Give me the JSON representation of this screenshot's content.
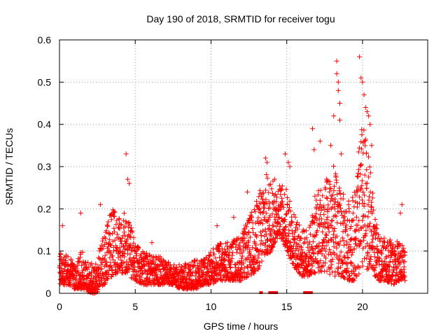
{
  "chart_data": {
    "type": "scatter",
    "title": "Day 190 of 2018, SRMTID for receiver togu",
    "xlabel": "GPS time / hours",
    "ylabel": "SRMTID / TECUs",
    "xlim": [
      0,
      24.3
    ],
    "ylim": [
      0,
      0.6
    ],
    "xticks": [
      0,
      5,
      10,
      15,
      20
    ],
    "xtick_labels": [
      "0",
      "5",
      "10",
      "15",
      "20"
    ],
    "yticks": [
      0,
      0.1,
      0.2,
      0.3,
      0.4,
      0.5,
      0.6
    ],
    "ytick_labels": [
      "0",
      "0.1",
      "0.2",
      "0.3",
      "0.4",
      "0.5",
      "0.6"
    ],
    "grid": true,
    "marker": "plus",
    "color": "#ff0000",
    "series": [
      {
        "name": "SRMTID",
        "envelope": [
          [
            0.0,
            0.02,
            0.1
          ],
          [
            0.5,
            0.02,
            0.09
          ],
          [
            1.0,
            0.01,
            0.08
          ],
          [
            1.5,
            0.01,
            0.1
          ],
          [
            2.0,
            0.0,
            0.07
          ],
          [
            2.5,
            0.0,
            0.08
          ],
          [
            3.0,
            0.02,
            0.16
          ],
          [
            3.5,
            0.04,
            0.2
          ],
          [
            4.0,
            0.05,
            0.18
          ],
          [
            4.5,
            0.04,
            0.2
          ],
          [
            5.0,
            0.03,
            0.12
          ],
          [
            5.5,
            0.02,
            0.1
          ],
          [
            6.0,
            0.02,
            0.09
          ],
          [
            6.5,
            0.02,
            0.09
          ],
          [
            7.0,
            0.02,
            0.08
          ],
          [
            7.5,
            0.02,
            0.07
          ],
          [
            8.0,
            0.01,
            0.07
          ],
          [
            8.5,
            0.01,
            0.07
          ],
          [
            9.0,
            0.01,
            0.08
          ],
          [
            9.5,
            0.02,
            0.08
          ],
          [
            10.0,
            0.02,
            0.1
          ],
          [
            10.5,
            0.03,
            0.12
          ],
          [
            11.0,
            0.03,
            0.12
          ],
          [
            11.5,
            0.03,
            0.13
          ],
          [
            12.0,
            0.03,
            0.14
          ],
          [
            12.5,
            0.04,
            0.18
          ],
          [
            13.0,
            0.05,
            0.22
          ],
          [
            13.5,
            0.08,
            0.29
          ],
          [
            14.0,
            0.1,
            0.27
          ],
          [
            14.5,
            0.14,
            0.26
          ],
          [
            15.0,
            0.1,
            0.25
          ],
          [
            15.5,
            0.06,
            0.19
          ],
          [
            16.0,
            0.04,
            0.15
          ],
          [
            16.5,
            0.04,
            0.16
          ],
          [
            17.0,
            0.05,
            0.26
          ],
          [
            17.5,
            0.05,
            0.26
          ],
          [
            18.0,
            0.04,
            0.32
          ],
          [
            18.5,
            0.04,
            0.25
          ],
          [
            19.0,
            0.03,
            0.22
          ],
          [
            19.5,
            0.03,
            0.25
          ],
          [
            20.0,
            0.05,
            0.42
          ],
          [
            20.5,
            0.06,
            0.3
          ],
          [
            21.0,
            0.03,
            0.14
          ],
          [
            21.5,
            0.03,
            0.13
          ],
          [
            22.0,
            0.02,
            0.13
          ],
          [
            22.5,
            0.03,
            0.12
          ],
          [
            22.8,
            0.03,
            0.11
          ]
        ],
        "outliers": [
          [
            0.2,
            0.16
          ],
          [
            1.4,
            0.19
          ],
          [
            2.7,
            0.21
          ],
          [
            4.4,
            0.33
          ],
          [
            4.5,
            0.27
          ],
          [
            4.6,
            0.26
          ],
          [
            6.1,
            0.12
          ],
          [
            10.4,
            0.16
          ],
          [
            11.5,
            0.18
          ],
          [
            12.4,
            0.24
          ],
          [
            13.6,
            0.32
          ],
          [
            13.7,
            0.31
          ],
          [
            14.2,
            0.27
          ],
          [
            14.9,
            0.33
          ],
          [
            15.1,
            0.31
          ],
          [
            15.2,
            0.3
          ],
          [
            16.7,
            0.39
          ],
          [
            16.8,
            0.34
          ],
          [
            17.2,
            0.36
          ],
          [
            17.9,
            0.35
          ],
          [
            18.1,
            0.42
          ],
          [
            18.3,
            0.55
          ],
          [
            18.3,
            0.52
          ],
          [
            18.4,
            0.5
          ],
          [
            18.4,
            0.48
          ],
          [
            18.5,
            0.45
          ],
          [
            18.5,
            0.41
          ],
          [
            18.6,
            0.33
          ],
          [
            19.8,
            0.56
          ],
          [
            19.9,
            0.51
          ],
          [
            20.0,
            0.5
          ],
          [
            20.1,
            0.47
          ],
          [
            20.2,
            0.44
          ],
          [
            20.3,
            0.43
          ],
          [
            20.4,
            0.42
          ],
          [
            20.5,
            0.4
          ],
          [
            20.6,
            0.35
          ],
          [
            22.6,
            0.21
          ],
          [
            22.5,
            0.19
          ]
        ],
        "zero_clusters": [
          13.3,
          13.9,
          14.0,
          14.1,
          14.3,
          16.2,
          16.4,
          16.6
        ]
      }
    ]
  }
}
